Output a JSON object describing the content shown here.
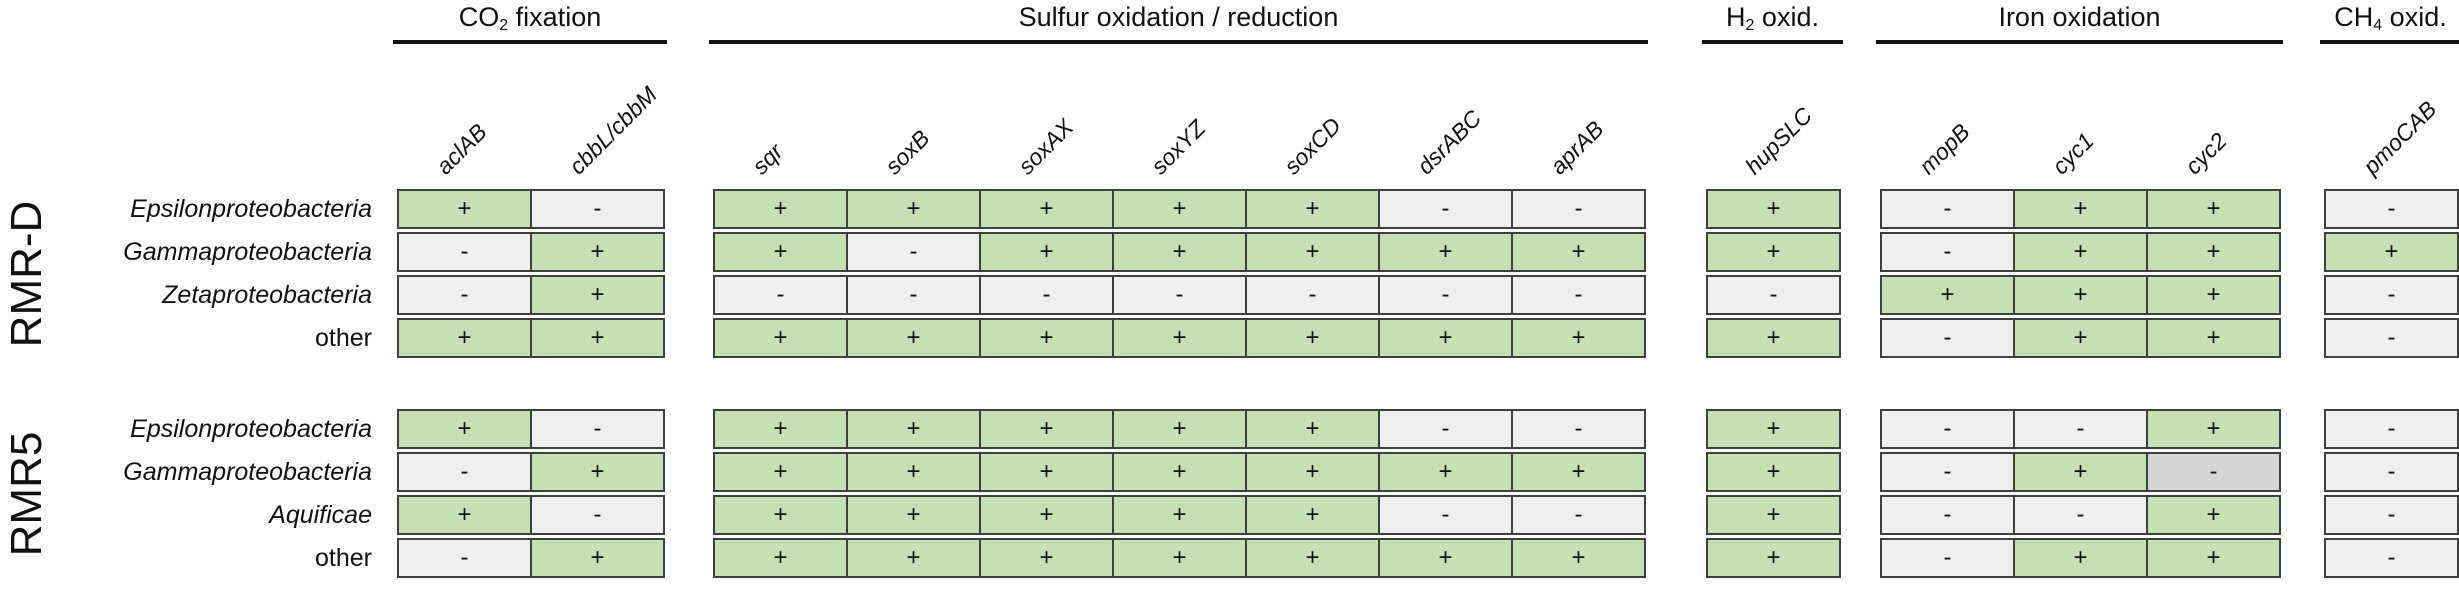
{
  "groups": [
    {
      "title_main": "CO",
      "title_sub": "2",
      "title_rest": " fixation",
      "genes": [
        "aclAB",
        "cbbL/cbbM"
      ]
    },
    {
      "title_main": "Sulfur oxidation / reduction",
      "title_sub": "",
      "title_rest": "",
      "genes": [
        "sqr",
        "soxB",
        "soxAX",
        "soxYZ",
        "soxCD",
        "dsrABC",
        "aprAB"
      ]
    },
    {
      "title_main": "H",
      "title_sub": "2",
      "title_rest": " oxid.",
      "genes": [
        "hupSLC"
      ]
    },
    {
      "title_main": "Iron oxidation",
      "title_sub": "",
      "title_rest": "",
      "genes": [
        "mopB",
        "cyc1",
        "cyc2"
      ]
    },
    {
      "title_main": "CH",
      "title_sub": "4",
      "title_rest": " oxid.",
      "genes": [
        "pmoCAB"
      ]
    }
  ],
  "sites": [
    {
      "name": "RMR-D",
      "rows": [
        {
          "label": "Epsilonproteobacteria",
          "italic": true,
          "values": [
            "+",
            "-",
            "+",
            "+",
            "+",
            "+",
            "+",
            "-",
            "-",
            "+",
            "-",
            "+",
            "+",
            "-"
          ]
        },
        {
          "label": "Gammaproteobacteria",
          "italic": true,
          "values": [
            "-",
            "+",
            "+",
            "-",
            "+",
            "+",
            "+",
            "+",
            "+",
            "+",
            "-",
            "+",
            "+",
            "+"
          ]
        },
        {
          "label": "Zetaproteobacteria",
          "italic": true,
          "values": [
            "-",
            "+",
            "-",
            "-",
            "-",
            "-",
            "-",
            "-",
            "-",
            "-",
            "+",
            "+",
            "+",
            "-"
          ]
        },
        {
          "label": "other",
          "italic": false,
          "values": [
            "+",
            "+",
            "+",
            "+",
            "+",
            "+",
            "+",
            "+",
            "+",
            "+",
            "-",
            "+",
            "+",
            "-"
          ]
        }
      ]
    },
    {
      "name": "RMR5",
      "rows": [
        {
          "label": "Epsilonproteobacteria",
          "italic": true,
          "values": [
            "+",
            "-",
            "+",
            "+",
            "+",
            "+",
            "+",
            "-",
            "-",
            "+",
            "-",
            "-",
            "+",
            "-"
          ]
        },
        {
          "label": "Gammaproteobacteria",
          "italic": true,
          "values": [
            "-",
            "+",
            "+",
            "+",
            "+",
            "+",
            "+",
            "+",
            "+",
            "+",
            "-",
            "+",
            "-",
            "-"
          ]
        },
        {
          "label": "Aquificae",
          "italic": true,
          "values": [
            "+",
            "-",
            "+",
            "+",
            "+",
            "+",
            "+",
            "-",
            "-",
            "+",
            "-",
            "-",
            "+",
            "-"
          ]
        },
        {
          "label": "other",
          "italic": false,
          "values": [
            "-",
            "+",
            "+",
            "+",
            "+",
            "+",
            "+",
            "+",
            "+",
            "+",
            "-",
            "+",
            "+",
            "-"
          ]
        }
      ]
    }
  ],
  "special_cells": [
    {
      "site": 1,
      "row": 1,
      "col": 12,
      "state": "ambiguous"
    }
  ],
  "colors": {
    "present": "#c5e0b3",
    "absent": "#efefef",
    "ambiguous": "#d6d6d6",
    "border": "#3f3f3f"
  }
}
